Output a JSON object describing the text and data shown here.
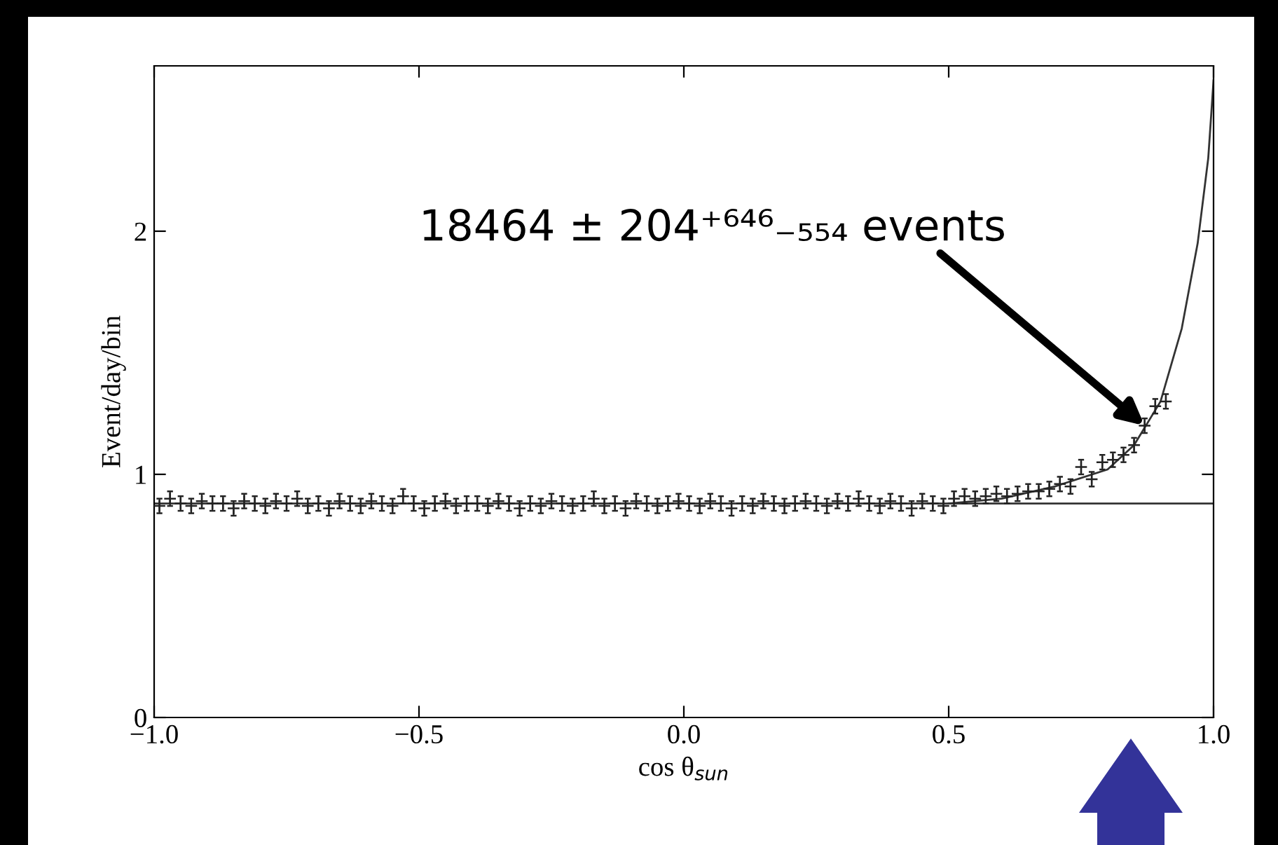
{
  "chart_data": {
    "type": "scatter",
    "xlabel": "cos θ$_{sun}$",
    "ylabel": "Event/day/bin",
    "xlim": [
      -1.0,
      1.0
    ],
    "ylim": [
      0,
      2.68
    ],
    "xticks": [
      {
        "value": -1.0,
        "label": "−1.0"
      },
      {
        "value": -0.5,
        "label": "−0.5"
      },
      {
        "value": 0.0,
        "label": "0.0"
      },
      {
        "value": 0.5,
        "label": "0.5"
      },
      {
        "value": 1.0,
        "label": "1.0"
      }
    ],
    "yticks": [
      0,
      1,
      2
    ],
    "grid": false,
    "legend": false,
    "annotations": [
      {
        "text": "18464 ± 204⁺⁶⁴⁶₋₅₅₄ events",
        "x": 0.87,
        "y": 1.2
      }
    ],
    "series": [
      {
        "marker": "cross",
        "color": "#222222",
        "x": [
          -0.99,
          -0.97,
          -0.95,
          -0.93,
          -0.91,
          -0.89,
          -0.87,
          -0.85,
          -0.83,
          -0.81,
          -0.79,
          -0.77,
          -0.75,
          -0.73,
          -0.71,
          -0.69,
          -0.67,
          -0.65,
          -0.63,
          -0.61,
          -0.59,
          -0.57,
          -0.55,
          -0.53,
          -0.51,
          -0.49,
          -0.47,
          -0.45,
          -0.43,
          -0.41,
          -0.39,
          -0.37,
          -0.35,
          -0.33,
          -0.31,
          -0.29,
          -0.27,
          -0.25,
          -0.23,
          -0.21,
          -0.19,
          -0.17,
          -0.15,
          -0.13,
          -0.11,
          -0.09,
          -0.07,
          -0.05,
          -0.03,
          -0.01,
          0.01,
          0.03,
          0.05,
          0.07,
          0.09,
          0.11,
          0.13,
          0.15,
          0.17,
          0.19,
          0.21,
          0.23,
          0.25,
          0.27,
          0.29,
          0.31,
          0.33,
          0.35,
          0.37,
          0.39,
          0.41,
          0.43,
          0.45,
          0.47,
          0.49,
          0.51,
          0.53,
          0.55,
          0.57,
          0.59,
          0.61,
          0.63,
          0.65,
          0.67,
          0.69,
          0.71,
          0.73,
          0.75,
          0.77,
          0.79,
          0.81,
          0.83,
          0.85,
          0.87,
          0.89,
          0.91
        ],
        "values": [
          0.87,
          0.9,
          0.88,
          0.87,
          0.89,
          0.88,
          0.88,
          0.86,
          0.89,
          0.88,
          0.87,
          0.89,
          0.88,
          0.9,
          0.87,
          0.88,
          0.86,
          0.89,
          0.88,
          0.87,
          0.89,
          0.88,
          0.87,
          0.91,
          0.88,
          0.86,
          0.88,
          0.89,
          0.87,
          0.88,
          0.88,
          0.87,
          0.89,
          0.88,
          0.86,
          0.88,
          0.87,
          0.89,
          0.88,
          0.87,
          0.88,
          0.9,
          0.87,
          0.88,
          0.86,
          0.89,
          0.88,
          0.87,
          0.88,
          0.89,
          0.88,
          0.87,
          0.89,
          0.88,
          0.86,
          0.88,
          0.87,
          0.89,
          0.88,
          0.87,
          0.88,
          0.89,
          0.88,
          0.87,
          0.89,
          0.88,
          0.9,
          0.88,
          0.87,
          0.89,
          0.88,
          0.86,
          0.89,
          0.88,
          0.87,
          0.9,
          0.91,
          0.9,
          0.91,
          0.92,
          0.91,
          0.92,
          0.93,
          0.93,
          0.94,
          0.96,
          0.95,
          1.03,
          0.98,
          1.05,
          1.06,
          1.08,
          1.12,
          1.2,
          1.28,
          1.3
        ],
        "errors": [
          0.03,
          0.03,
          0.03,
          0.03,
          0.03,
          0.03,
          0.03,
          0.03,
          0.03,
          0.03,
          0.03,
          0.03,
          0.03,
          0.03,
          0.03,
          0.03,
          0.03,
          0.03,
          0.03,
          0.03,
          0.03,
          0.03,
          0.03,
          0.03,
          0.03,
          0.03,
          0.03,
          0.03,
          0.03,
          0.03,
          0.03,
          0.03,
          0.03,
          0.03,
          0.03,
          0.03,
          0.03,
          0.03,
          0.03,
          0.03,
          0.03,
          0.03,
          0.03,
          0.03,
          0.03,
          0.03,
          0.03,
          0.03,
          0.03,
          0.03,
          0.03,
          0.03,
          0.03,
          0.03,
          0.03,
          0.03,
          0.03,
          0.03,
          0.03,
          0.03,
          0.03,
          0.03,
          0.03,
          0.03,
          0.03,
          0.03,
          0.03,
          0.03,
          0.03,
          0.03,
          0.03,
          0.03,
          0.03,
          0.03,
          0.03,
          0.03,
          0.03,
          0.03,
          0.03,
          0.03,
          0.03,
          0.03,
          0.03,
          0.03,
          0.03,
          0.03,
          0.03,
          0.03,
          0.03,
          0.03,
          0.03,
          0.03,
          0.03,
          0.03,
          0.03,
          0.03
        ]
      },
      {
        "type": "line",
        "color": "#333333",
        "x": [
          -1.0,
          0.5,
          0.6,
          0.7,
          0.8,
          0.85,
          0.9,
          0.94,
          0.97,
          0.99,
          1.0
        ],
        "values": [
          0.88,
          0.88,
          0.9,
          0.95,
          1.02,
          1.12,
          1.3,
          1.6,
          1.95,
          2.3,
          2.62
        ]
      },
      {
        "type": "line",
        "color": "#333333",
        "x": [
          0.5,
          1.0
        ],
        "values": [
          0.88,
          0.88
        ]
      }
    ]
  }
}
